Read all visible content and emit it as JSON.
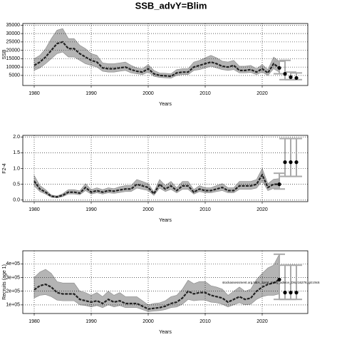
{
  "title": "SSB_advY=Blim",
  "chart_data": [
    {
      "type": "line",
      "ylabel": "SSB",
      "xlabel": "Years",
      "xlim": [
        1978,
        2028
      ],
      "xticks": [
        1980,
        1990,
        2000,
        2010,
        2020
      ],
      "ylim": [
        -1000,
        36000
      ],
      "yticks": [
        5000,
        10000,
        15000,
        20000,
        25000,
        30000,
        35000
      ],
      "grid": true,
      "color": "#222222",
      "band_color": "#b4b4b4",
      "x": [
        1980,
        1981,
        1982,
        1983,
        1984,
        1985,
        1986,
        1987,
        1988,
        1989,
        1990,
        1991,
        1992,
        1993,
        1994,
        1995,
        1996,
        1997,
        1998,
        1999,
        2000,
        2001,
        2002,
        2003,
        2004,
        2005,
        2006,
        2007,
        2008,
        2009,
        2010,
        2011,
        2012,
        2013,
        2014,
        2015,
        2016,
        2017,
        2018,
        2019,
        2020,
        2021,
        2022,
        2023
      ],
      "values": [
        11000,
        13000,
        16000,
        20000,
        24000,
        25000,
        21000,
        21000,
        18000,
        16000,
        14000,
        13000,
        9500,
        9000,
        9000,
        9500,
        10000,
        8500,
        7500,
        7000,
        9000,
        6000,
        5000,
        4800,
        4500,
        6500,
        7000,
        7000,
        10000,
        11000,
        12000,
        13000,
        12000,
        10500,
        10000,
        11000,
        8000,
        8000,
        8500,
        7000,
        9000,
        6500,
        12000,
        9500
      ],
      "lower": [
        8000,
        9500,
        12000,
        15000,
        18000,
        19000,
        16000,
        16000,
        14000,
        12000,
        11000,
        10000,
        7500,
        7000,
        7000,
        7500,
        8000,
        6500,
        6000,
        5500,
        7000,
        4500,
        3800,
        3600,
        3400,
        5000,
        5500,
        5500,
        8000,
        8500,
        9500,
        10500,
        9500,
        8500,
        8000,
        8500,
        6500,
        6500,
        6800,
        5500,
        7000,
        5000,
        9000,
        7000
      ],
      "upper": [
        15000,
        17000,
        21000,
        27000,
        32000,
        33000,
        27000,
        27000,
        23000,
        21000,
        18000,
        17000,
        12500,
        12000,
        12000,
        12500,
        13000,
        11000,
        9500,
        9000,
        11500,
        8000,
        6500,
        6300,
        6000,
        8500,
        9000,
        9000,
        13000,
        14000,
        15500,
        17000,
        15500,
        13500,
        13000,
        14000,
        10500,
        10500,
        11000,
        9000,
        11500,
        8500,
        16000,
        13500
      ],
      "forecast": {
        "x": [
          2023,
          2024,
          2025,
          2026
        ],
        "values": [
          9500,
          6000,
          4000,
          3500
        ],
        "lower": [
          6000,
          2500,
          2500,
          2500
        ],
        "upper": [
          13500,
          14000,
          7000,
          6500
        ]
      }
    },
    {
      "type": "line",
      "ylabel": "F2-4",
      "xlabel": "Years",
      "xlim": [
        1978,
        2028
      ],
      "xticks": [
        1980,
        1990,
        2000,
        2010,
        2020
      ],
      "ylim": [
        -0.05,
        2.05
      ],
      "yticks": [
        {
          "value": 0,
          "label": "0.0"
        },
        {
          "value": 0.5,
          "label": "0.5"
        },
        {
          "value": 1,
          "label": "1.0"
        },
        {
          "value": 1.5,
          "label": "1.5"
        },
        {
          "value": 2,
          "label": "2.0"
        }
      ],
      "grid": true,
      "color": "#222222",
      "band_color": "#b4b4b4",
      "x": [
        1980,
        1981,
        1982,
        1983,
        1984,
        1985,
        1986,
        1987,
        1988,
        1989,
        1990,
        1991,
        1992,
        1993,
        1994,
        1995,
        1996,
        1997,
        1998,
        1999,
        2000,
        2001,
        2002,
        2003,
        2004,
        2005,
        2006,
        2007,
        2008,
        2009,
        2010,
        2011,
        2012,
        2013,
        2014,
        2015,
        2016,
        2017,
        2018,
        2019,
        2020,
        2021,
        2022,
        2023
      ],
      "values": [
        0.6,
        0.35,
        0.25,
        0.12,
        0.1,
        0.15,
        0.25,
        0.25,
        0.22,
        0.4,
        0.25,
        0.3,
        0.25,
        0.3,
        0.28,
        0.32,
        0.35,
        0.35,
        0.5,
        0.45,
        0.4,
        0.2,
        0.5,
        0.35,
        0.45,
        0.3,
        0.45,
        0.45,
        0.25,
        0.35,
        0.3,
        0.3,
        0.35,
        0.4,
        0.3,
        0.3,
        0.45,
        0.45,
        0.45,
        0.5,
        0.8,
        0.4,
        0.5,
        0.5
      ],
      "lower": [
        0.45,
        0.27,
        0.19,
        0.09,
        0.07,
        0.11,
        0.19,
        0.19,
        0.17,
        0.3,
        0.19,
        0.23,
        0.19,
        0.23,
        0.21,
        0.24,
        0.27,
        0.27,
        0.38,
        0.34,
        0.3,
        0.15,
        0.38,
        0.27,
        0.34,
        0.23,
        0.34,
        0.34,
        0.19,
        0.27,
        0.23,
        0.23,
        0.27,
        0.3,
        0.23,
        0.23,
        0.34,
        0.34,
        0.34,
        0.38,
        0.6,
        0.3,
        0.37,
        0.36
      ],
      "upper": [
        0.78,
        0.46,
        0.33,
        0.16,
        0.13,
        0.2,
        0.33,
        0.33,
        0.29,
        0.52,
        0.33,
        0.39,
        0.33,
        0.39,
        0.36,
        0.42,
        0.46,
        0.46,
        0.65,
        0.59,
        0.52,
        0.26,
        0.65,
        0.46,
        0.59,
        0.39,
        0.59,
        0.59,
        0.33,
        0.46,
        0.39,
        0.39,
        0.46,
        0.52,
        0.39,
        0.39,
        0.59,
        0.59,
        0.59,
        0.65,
        1.0,
        0.52,
        0.66,
        0.68
      ],
      "forecast": {
        "x": [
          2023,
          2024,
          2025,
          2026
        ],
        "values": [
          0.5,
          1.2,
          1.2,
          1.2
        ],
        "lower": [
          0.35,
          0.75,
          0.75,
          0.75
        ],
        "upper": [
          0.85,
          1.95,
          1.95,
          1.95
        ]
      }
    },
    {
      "type": "line",
      "ylabel": "Recruits (age 1)",
      "xlabel": "Years",
      "xlim": [
        1978,
        2028
      ],
      "xticks": [
        1980,
        1990,
        2000,
        2010,
        2020
      ],
      "ylim": [
        37000,
        495000
      ],
      "yticks": [
        {
          "value": 100000,
          "label": "1e+05"
        },
        {
          "value": 200000,
          "label": "2e+05"
        },
        {
          "value": 300000,
          "label": "3e+05"
        },
        {
          "value": 400000,
          "label": "4e+05"
        }
      ],
      "grid": true,
      "color": "#222222",
      "band_color": "#b4b4b4",
      "annotation": "stockassessment.org,NEA_sprat_trinity_advice_DIs,r16276, git:c9c6",
      "x": [
        1980,
        1981,
        1982,
        1983,
        1984,
        1985,
        1986,
        1987,
        1988,
        1989,
        1990,
        1991,
        1992,
        1993,
        1994,
        1995,
        1996,
        1997,
        1998,
        1999,
        2000,
        2001,
        2002,
        2003,
        2004,
        2005,
        2006,
        2007,
        2008,
        2009,
        2010,
        2011,
        2012,
        2013,
        2014,
        2015,
        2016,
        2017,
        2018,
        2019,
        2020,
        2021,
        2022,
        2023
      ],
      "values": [
        210000,
        240000,
        250000,
        230000,
        190000,
        180000,
        180000,
        180000,
        140000,
        130000,
        120000,
        130000,
        110000,
        140000,
        120000,
        130000,
        110000,
        110000,
        110000,
        90000,
        70000,
        75000,
        80000,
        90000,
        110000,
        120000,
        150000,
        200000,
        180000,
        190000,
        190000,
        170000,
        160000,
        150000,
        120000,
        140000,
        160000,
        140000,
        150000,
        200000,
        230000,
        250000,
        260000,
        285000
      ],
      "lower": [
        150000,
        170000,
        175000,
        160000,
        135000,
        130000,
        130000,
        130000,
        100000,
        95000,
        85000,
        95000,
        80000,
        100000,
        85000,
        95000,
        80000,
        80000,
        80000,
        65000,
        50000,
        55000,
        58000,
        65000,
        80000,
        85000,
        105000,
        140000,
        130000,
        135000,
        135000,
        120000,
        115000,
        105000,
        85000,
        100000,
        115000,
        100000,
        105000,
        140000,
        160000,
        170000,
        170000,
        180000
      ],
      "upper": [
        300000,
        340000,
        360000,
        330000,
        270000,
        260000,
        260000,
        260000,
        200000,
        190000,
        170000,
        190000,
        160000,
        200000,
        170000,
        190000,
        160000,
        160000,
        160000,
        130000,
        100000,
        110000,
        115000,
        130000,
        160000,
        170000,
        215000,
        280000,
        255000,
        270000,
        270000,
        240000,
        230000,
        215000,
        170000,
        200000,
        230000,
        200000,
        215000,
        285000,
        330000,
        370000,
        390000,
        470000
      ],
      "forecast": {
        "x": [
          2023,
          2024,
          2025,
          2026
        ],
        "values": [
          285000,
          190000,
          190000,
          190000
        ],
        "lower": [
          140000,
          140000,
          140000,
          140000
        ],
        "upper": [
          470000,
          390000,
          390000,
          390000
        ]
      }
    }
  ]
}
